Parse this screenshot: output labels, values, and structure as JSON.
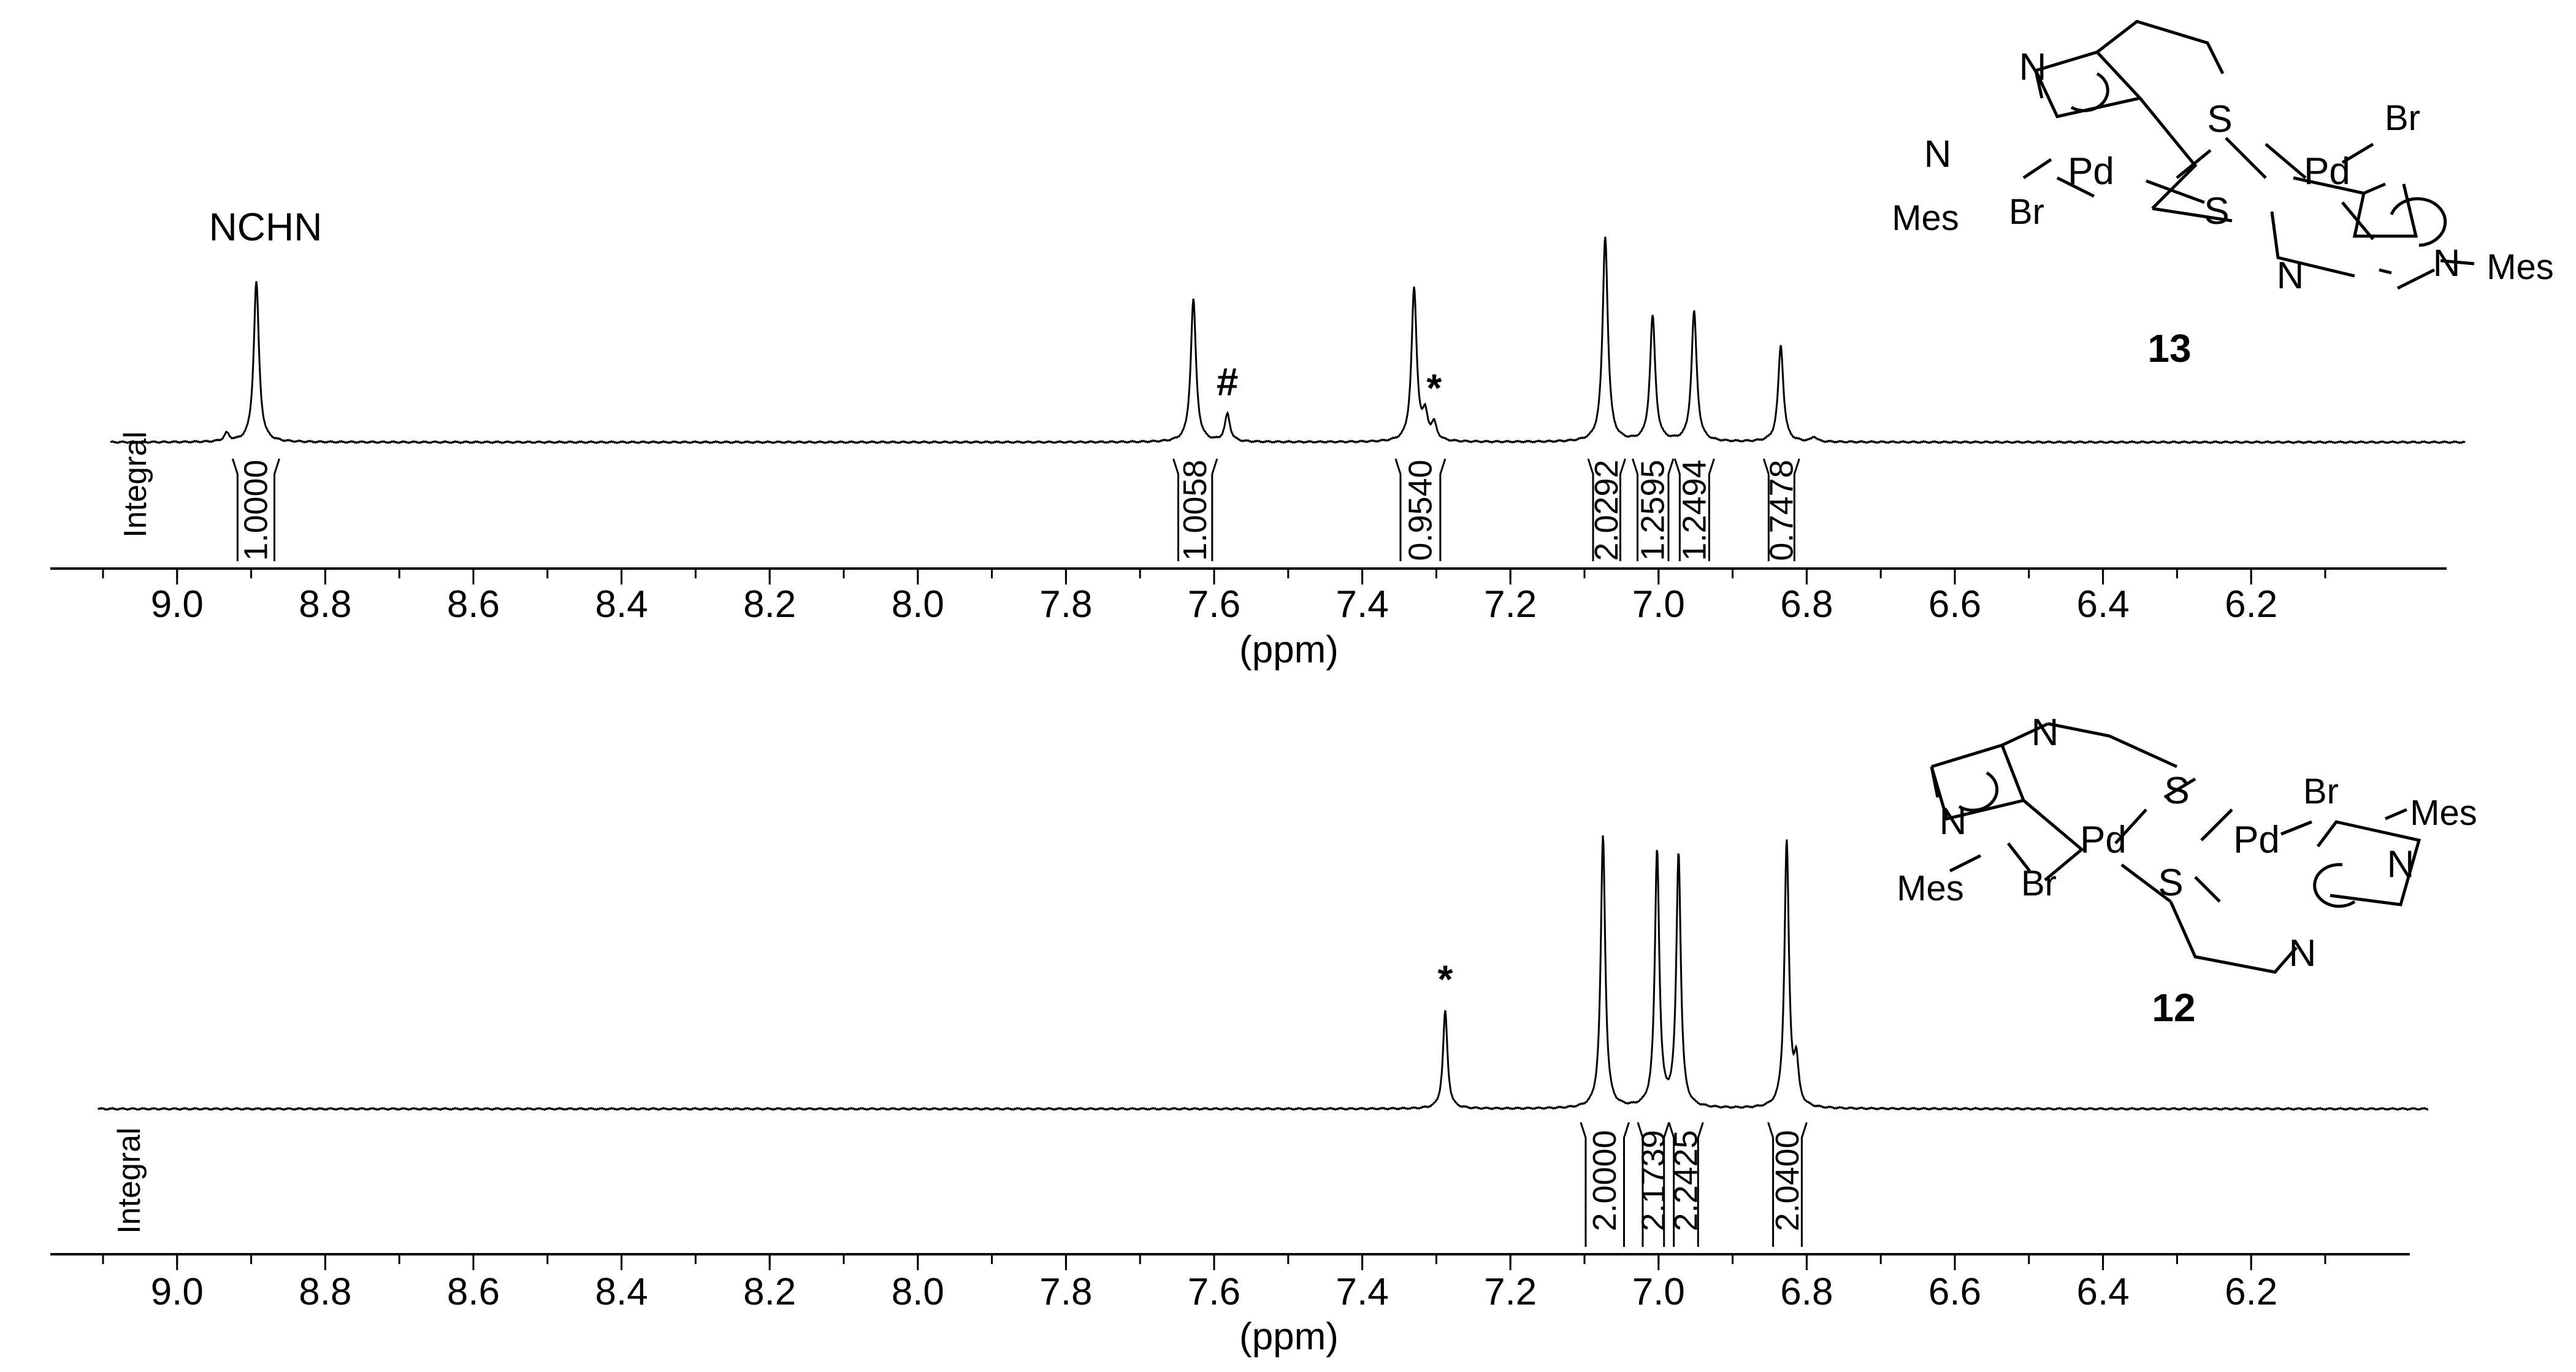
{
  "chart_data": [
    {
      "type": "line",
      "compound_label": "13",
      "peak_label": "NCHN",
      "xlabel": "(ppm)",
      "integral_label": "Integral",
      "xlim": [
        9.1,
        6.05
      ],
      "xticks": [
        "9.0",
        "8.8",
        "8.6",
        "8.4",
        "8.2",
        "8.0",
        "7.8",
        "7.6",
        "7.4",
        "7.2",
        "7.0",
        "6.8",
        "6.6",
        "6.4",
        "6.2"
      ],
      "peaks": [
        {
          "x": 8.933,
          "y": 0.05
        },
        {
          "x": 8.893,
          "y": 1.0
        },
        {
          "x": 7.628,
          "y": 0.89
        },
        {
          "x": 7.582,
          "y": 0.17
        },
        {
          "x": 7.33,
          "y": 0.95
        },
        {
          "x": 7.315,
          "y": 0.15
        },
        {
          "x": 7.303,
          "y": 0.1
        },
        {
          "x": 7.072,
          "y": 1.28
        },
        {
          "x": 7.008,
          "y": 0.78
        },
        {
          "x": 6.952,
          "y": 0.81
        },
        {
          "x": 6.835,
          "y": 0.6
        },
        {
          "x": 6.79,
          "y": 0.03
        }
      ],
      "markers": [
        {
          "symbol": "#",
          "x": 7.582
        },
        {
          "symbol": "*",
          "x": 7.303
        }
      ],
      "integrals": [
        {
          "x_start": 8.925,
          "x_end": 8.862,
          "value": "1.0000"
        },
        {
          "x_start": 7.655,
          "x_end": 7.596,
          "value": "1.0058"
        },
        {
          "x_start": 7.355,
          "x_end": 7.288,
          "value": "0.9540"
        },
        {
          "x_start": 7.095,
          "x_end": 7.045,
          "value": "2.0292"
        },
        {
          "x_start": 7.035,
          "x_end": 6.98,
          "value": "1.2595"
        },
        {
          "x_start": 6.978,
          "x_end": 6.925,
          "value": "1.2494"
        },
        {
          "x_start": 6.858,
          "x_end": 6.81,
          "value": "0.7478"
        }
      ],
      "structure_labels": [
        "N",
        "N",
        "Mes",
        "Pd",
        "Br",
        "S",
        "S",
        "Pd",
        "Br",
        "N",
        "N",
        "Mes"
      ]
    },
    {
      "type": "line",
      "compound_label": "12",
      "xlabel": "(ppm)",
      "integral_label": "Integral",
      "xlim": [
        9.1,
        6.05
      ],
      "xticks": [
        "9.0",
        "8.8",
        "8.6",
        "8.4",
        "8.2",
        "8.0",
        "7.8",
        "7.6",
        "7.4",
        "7.2",
        "7.0",
        "6.8",
        "6.6",
        "6.4",
        "6.2"
      ],
      "peaks": [
        {
          "x": 7.288,
          "y": 0.3
        },
        {
          "x": 7.075,
          "y": 0.84
        },
        {
          "x": 7.002,
          "y": 0.79
        },
        {
          "x": 6.973,
          "y": 0.78
        },
        {
          "x": 6.827,
          "y": 0.82
        },
        {
          "x": 6.814,
          "y": 0.13
        }
      ],
      "markers": [
        {
          "symbol": "*",
          "x": 7.288
        }
      ],
      "integrals": [
        {
          "x_start": 7.105,
          "x_end": 7.04,
          "value": "2.0000"
        },
        {
          "x_start": 7.028,
          "x_end": 6.986,
          "value": "2.1739"
        },
        {
          "x_start": 6.986,
          "x_end": 6.94,
          "value": "2.2425"
        },
        {
          "x_start": 6.852,
          "x_end": 6.8,
          "value": "2.0400"
        }
      ],
      "structure_labels": [
        "N",
        "N",
        "Mes",
        "Pd",
        "Br",
        "S",
        "S",
        "Pd",
        "Br",
        "N",
        "N",
        "Mes"
      ]
    }
  ]
}
